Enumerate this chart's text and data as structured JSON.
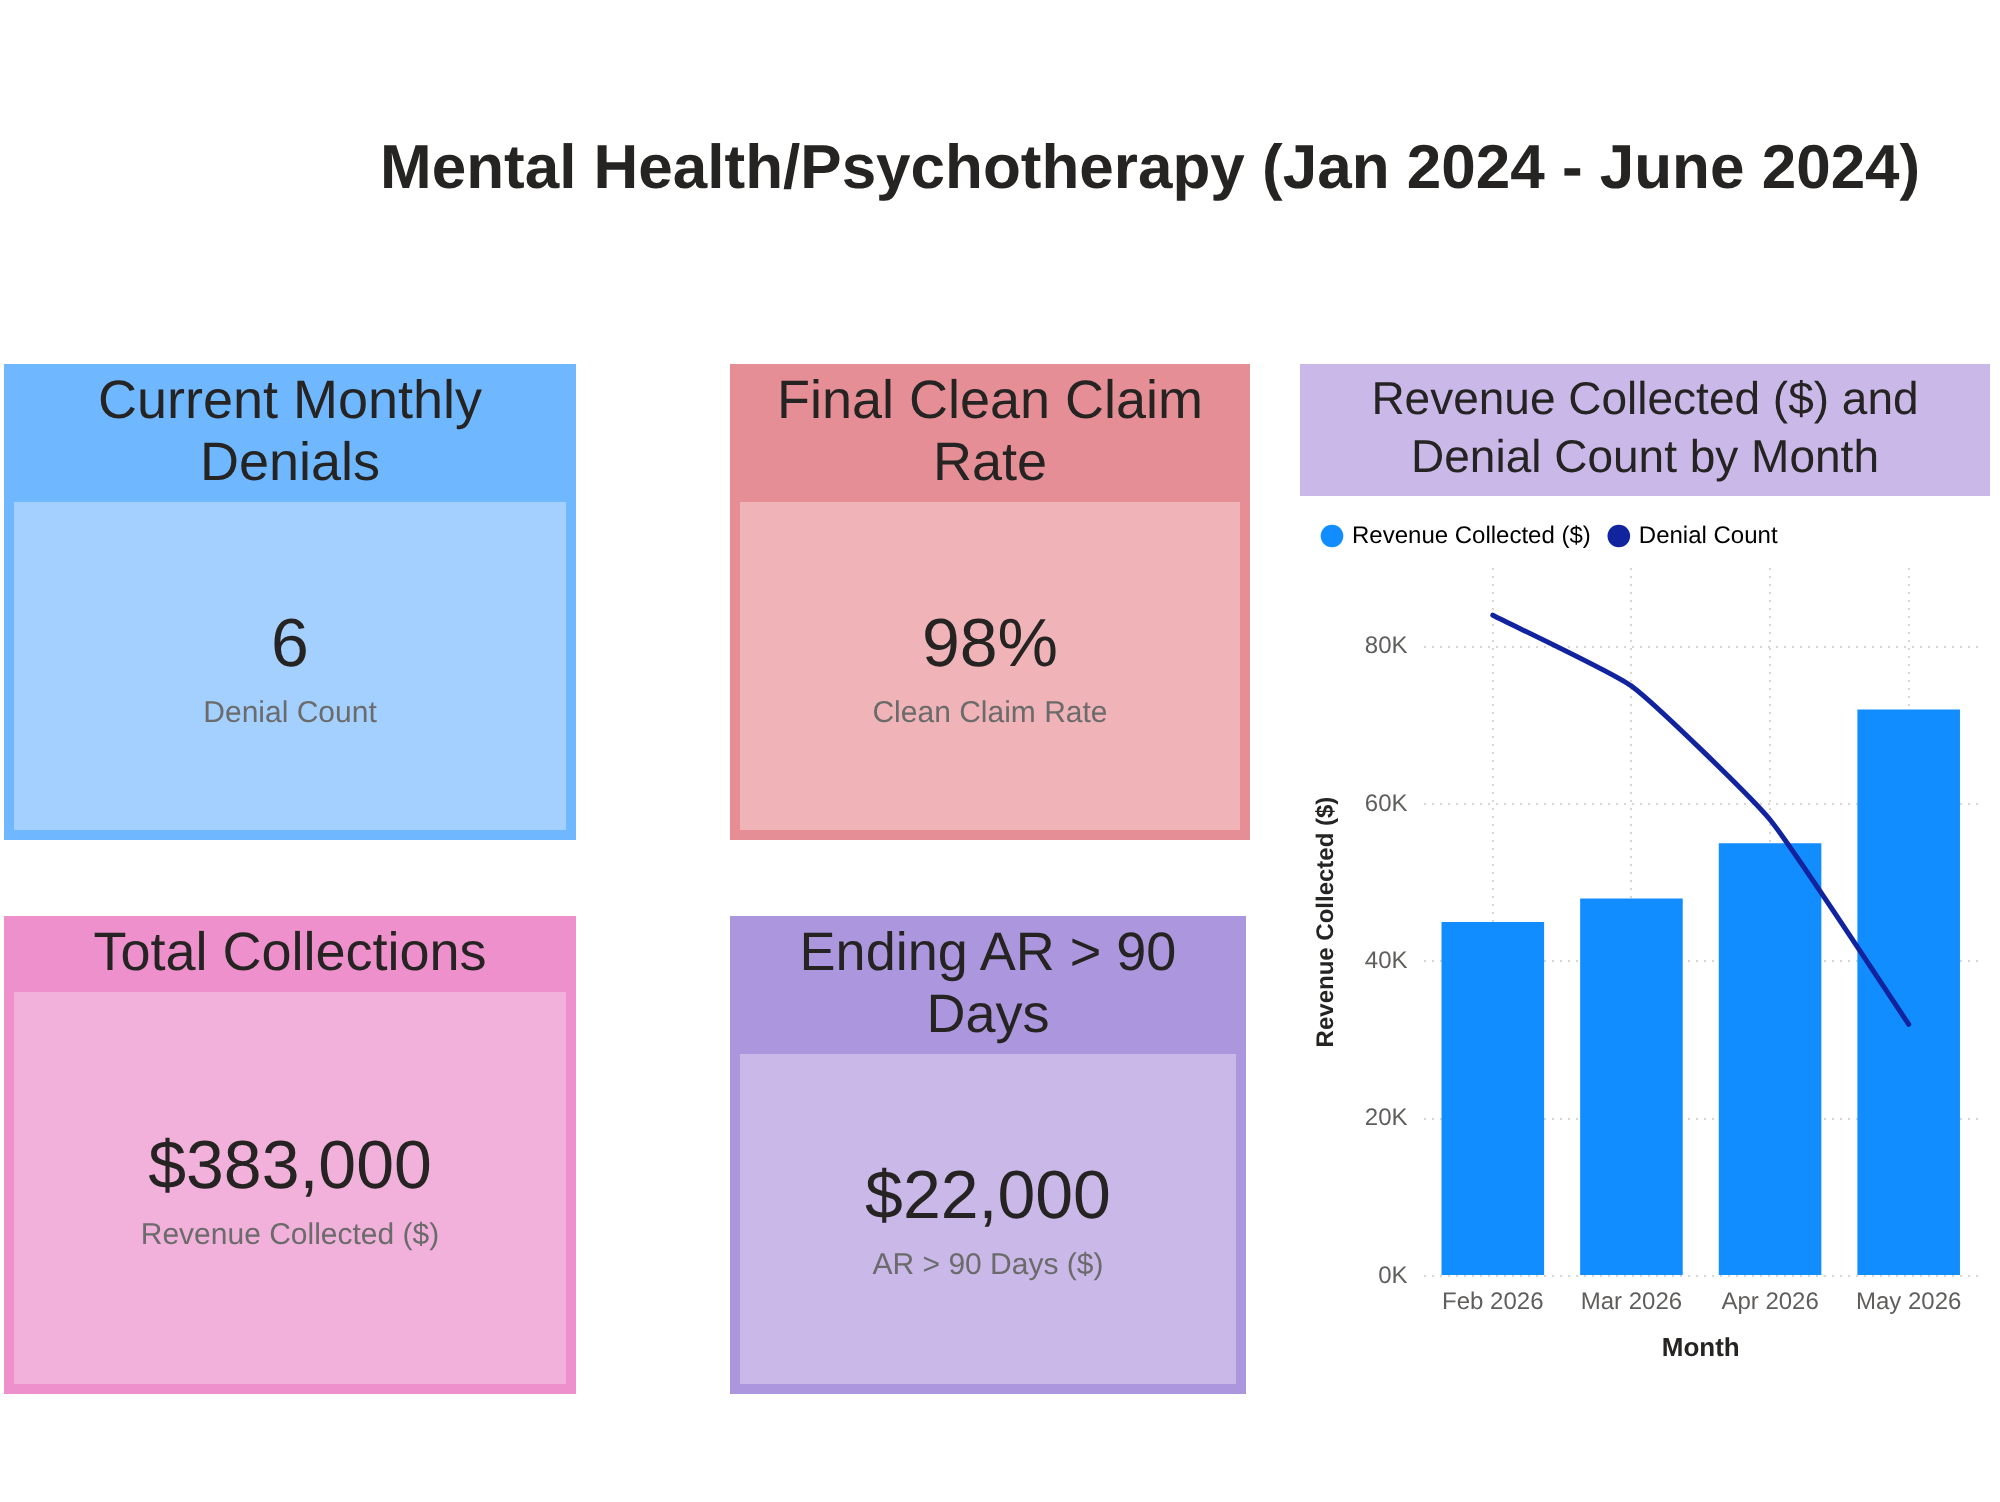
{
  "chart_data": [
    {
      "type": "other",
      "title": "Mental Health/Psychotherapy (Jan 2024 - June 2024)"
    },
    {
      "type": "other",
      "title": "Current Monthly Denials",
      "annotations": [
        "6",
        "Denial Count"
      ]
    },
    {
      "type": "other",
      "title": "Final Clean Claim Rate",
      "annotations": [
        "98%",
        "Clean Claim Rate"
      ]
    },
    {
      "type": "other",
      "title": "Total Collections",
      "annotations": [
        "$383,000",
        "Revenue Collected ($)"
      ]
    },
    {
      "type": "other",
      "title": "Ending AR > 90 Days",
      "annotations": [
        "$22,000",
        "AR > 90 Days ($)"
      ]
    },
    {
      "type": "bar",
      "title": "Revenue Collected ($) and Denial Count by Month",
      "xlabel": "Month",
      "ylabel": "Revenue Collected ($)",
      "categories": [
        "Feb 2026",
        "Mar 2026",
        "Apr 2026",
        "May 2026"
      ],
      "series": [
        {
          "name": "Revenue Collected ($)",
          "color": "#118dff",
          "values": [
            45000,
            48000,
            55000,
            72000
          ]
        },
        {
          "name": "Denial Count",
          "type": "line",
          "color": "#12239e",
          "values": [
            84000,
            75000,
            58000,
            32000
          ]
        }
      ],
      "ylim": [
        0,
        90000
      ],
      "yticks": [
        {
          "value": 0,
          "label": "0K"
        },
        {
          "value": 20000,
          "label": "20K"
        },
        {
          "value": 40000,
          "label": "40K"
        },
        {
          "value": 60000,
          "label": "60K"
        },
        {
          "value": 80000,
          "label": "80K"
        }
      ],
      "grid": true,
      "legend": "top left",
      "marker": "none"
    }
  ]
}
